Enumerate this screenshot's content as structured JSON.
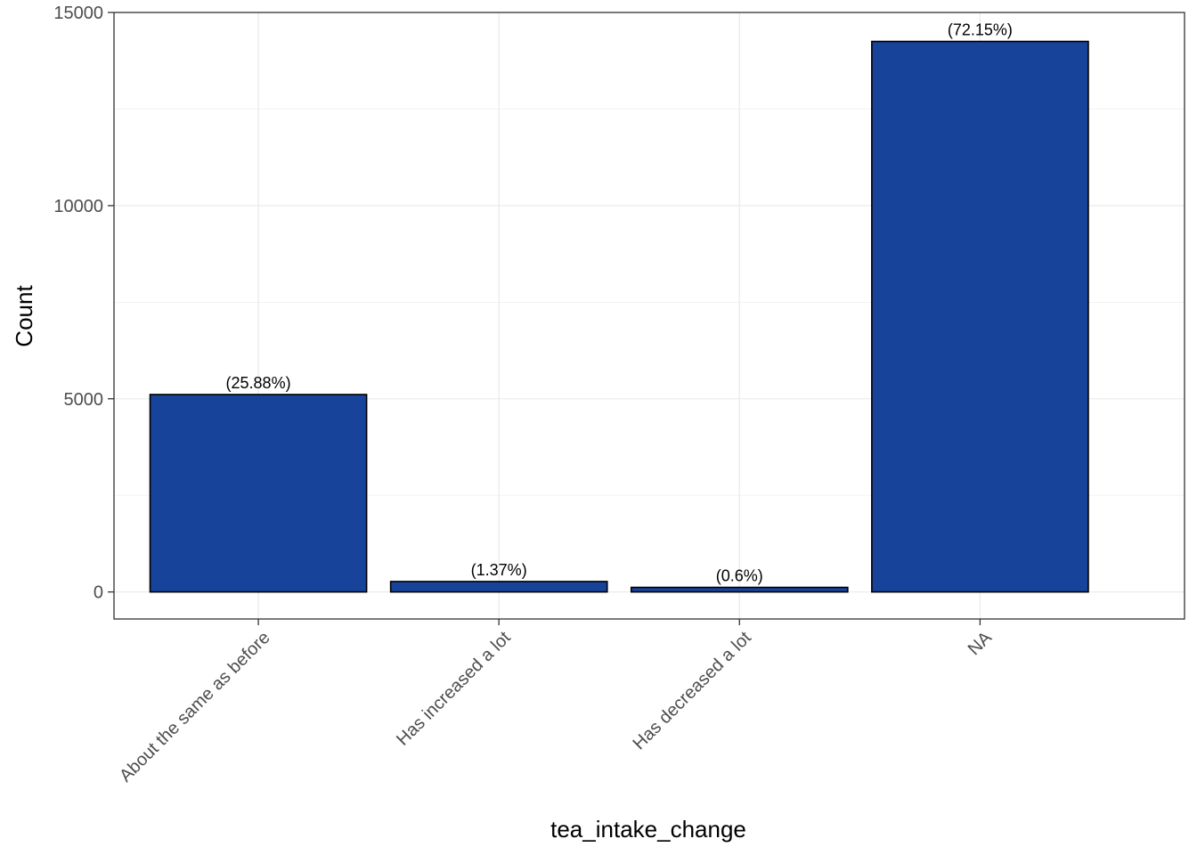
{
  "chart_data": {
    "type": "bar",
    "xlabel": "tea_intake_change",
    "ylabel": "Count",
    "categories": [
      "About the same as before",
      "Has increased a lot",
      "Has decreased a lot",
      "NA"
    ],
    "values": [
      5110,
      270,
      118,
      14250
    ],
    "data_labels": [
      "(25.88%)",
      "(1.37%)",
      "(0.6%)",
      "(72.15%)"
    ],
    "ylim": [
      -700,
      15000
    ],
    "y_ticks": [
      0,
      5000,
      10000,
      15000
    ],
    "y_tick_labels": [
      "0",
      "5000",
      "10000",
      "15000"
    ],
    "grid": true,
    "legend": "none",
    "bar_fill": "#17439b",
    "bar_stroke": "#000000",
    "grid_color": "#ebebeb",
    "panel_border_color": "#333333"
  }
}
